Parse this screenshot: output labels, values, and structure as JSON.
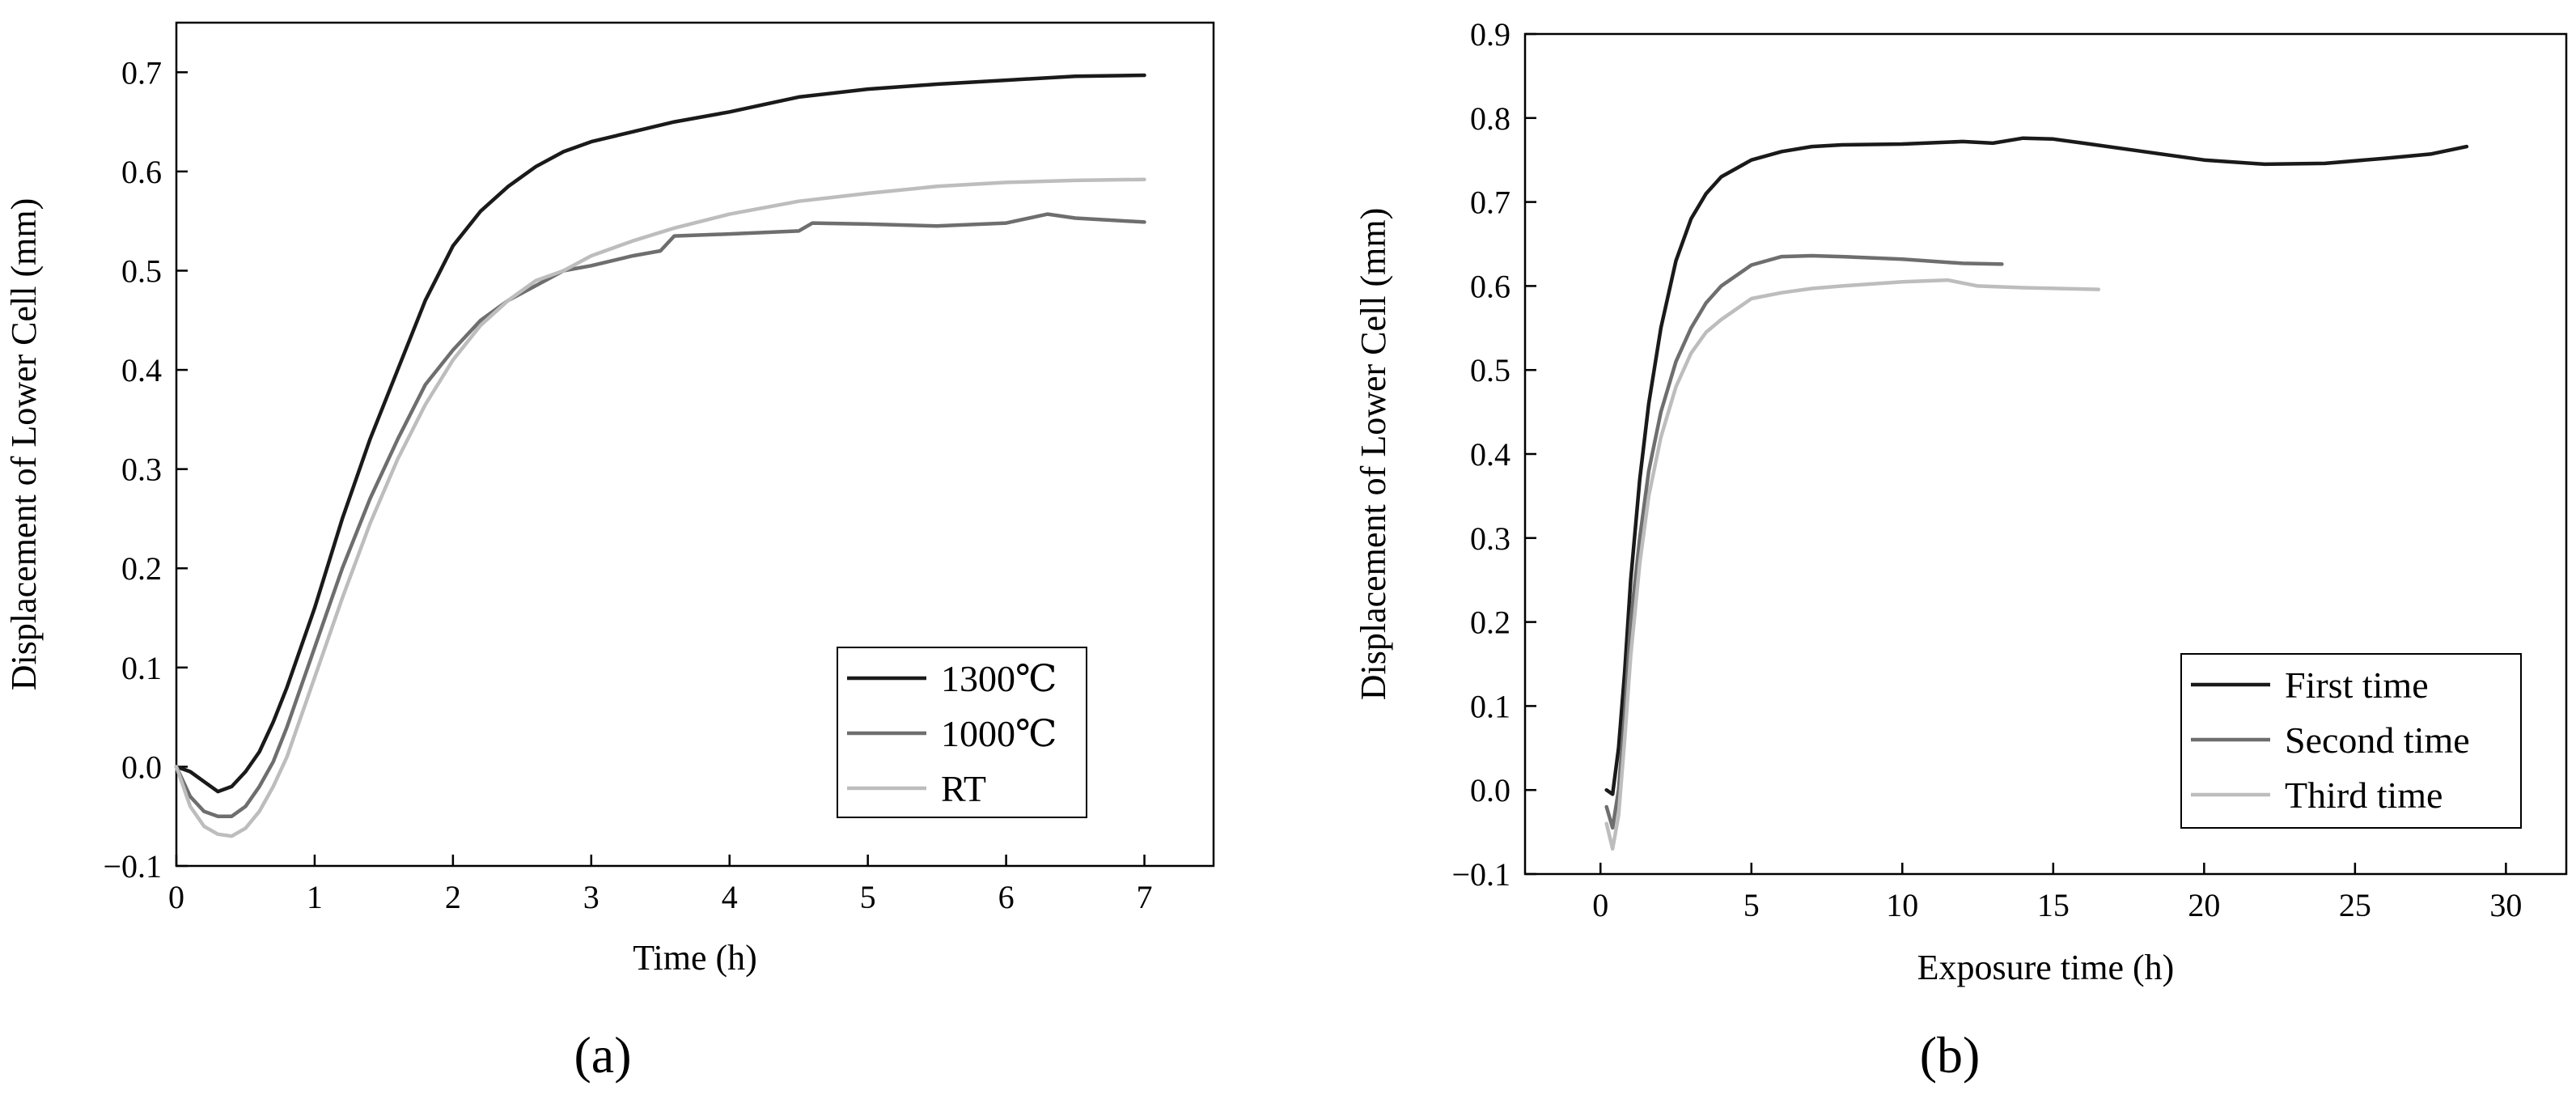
{
  "chart_data": [
    {
      "type": "line",
      "panel_label": "(a)",
      "xlabel": "Time (h)",
      "ylabel": "Displacement of Lower Cell (mm)",
      "xlim": [
        0,
        7.5
      ],
      "ylim": [
        -0.1,
        0.75
      ],
      "xticks": [
        0,
        1,
        2,
        3,
        4,
        5,
        6,
        7
      ],
      "xtick_labels": [
        "0",
        "1",
        "2",
        "3",
        "4",
        "5",
        "6",
        "7"
      ],
      "yticks": [
        -0.1,
        0.0,
        0.1,
        0.2,
        0.3,
        0.4,
        0.5,
        0.6,
        0.7
      ],
      "ytick_labels": [
        "−0.1",
        "0.0",
        "0.1",
        "0.2",
        "0.3",
        "0.4",
        "0.5",
        "0.6",
        "0.7"
      ],
      "legend_position": "bottom-right",
      "series": [
        {
          "name": "1300℃",
          "color": "#1a1a1a",
          "x": [
            0,
            0.1,
            0.2,
            0.3,
            0.4,
            0.5,
            0.6,
            0.7,
            0.8,
            0.9,
            1.0,
            1.2,
            1.4,
            1.6,
            1.8,
            2.0,
            2.2,
            2.4,
            2.6,
            2.8,
            3.0,
            3.3,
            3.6,
            4.0,
            4.5,
            5.0,
            5.5,
            6.0,
            6.5,
            7.0
          ],
          "y": [
            0.0,
            -0.005,
            -0.015,
            -0.025,
            -0.02,
            -0.005,
            0.015,
            0.045,
            0.08,
            0.12,
            0.16,
            0.25,
            0.33,
            0.4,
            0.47,
            0.525,
            0.56,
            0.585,
            0.605,
            0.62,
            0.63,
            0.64,
            0.65,
            0.66,
            0.675,
            0.683,
            0.688,
            0.692,
            0.696,
            0.697
          ]
        },
        {
          "name": "1000℃",
          "color": "#6e6e6e",
          "x": [
            0,
            0.1,
            0.2,
            0.3,
            0.4,
            0.5,
            0.6,
            0.7,
            0.8,
            0.9,
            1.0,
            1.2,
            1.4,
            1.6,
            1.8,
            2.0,
            2.2,
            2.4,
            2.6,
            2.8,
            3.0,
            3.3,
            3.5,
            3.6,
            4.0,
            4.5,
            4.6,
            5.0,
            5.5,
            6.0,
            6.3,
            6.5,
            7.0
          ],
          "y": [
            0.0,
            -0.03,
            -0.045,
            -0.05,
            -0.05,
            -0.04,
            -0.02,
            0.005,
            0.04,
            0.08,
            0.12,
            0.2,
            0.27,
            0.33,
            0.385,
            0.42,
            0.45,
            0.47,
            0.485,
            0.5,
            0.505,
            0.515,
            0.52,
            0.535,
            0.537,
            0.54,
            0.548,
            0.547,
            0.545,
            0.548,
            0.557,
            0.553,
            0.549
          ]
        },
        {
          "name": "RT",
          "color": "#bdbdbd",
          "x": [
            0,
            0.1,
            0.2,
            0.3,
            0.4,
            0.5,
            0.6,
            0.7,
            0.8,
            0.9,
            1.0,
            1.2,
            1.4,
            1.6,
            1.8,
            2.0,
            2.2,
            2.4,
            2.6,
            2.8,
            3.0,
            3.3,
            3.6,
            4.0,
            4.5,
            5.0,
            5.5,
            6.0,
            6.5,
            7.0
          ],
          "y": [
            0.0,
            -0.04,
            -0.06,
            -0.068,
            -0.07,
            -0.062,
            -0.045,
            -0.02,
            0.01,
            0.05,
            0.09,
            0.17,
            0.245,
            0.31,
            0.365,
            0.41,
            0.445,
            0.47,
            0.49,
            0.5,
            0.515,
            0.53,
            0.543,
            0.557,
            0.57,
            0.578,
            0.585,
            0.589,
            0.591,
            0.592
          ]
        }
      ]
    },
    {
      "type": "line",
      "panel_label": "(b)",
      "xlabel": "Exposure time (h)",
      "ylabel": "Displacement of Lower Cell (mm)",
      "xlim": [
        -2.5,
        32
      ],
      "ylim": [
        -0.1,
        0.9
      ],
      "xticks": [
        0,
        5,
        10,
        15,
        20,
        25,
        30
      ],
      "xtick_labels": [
        "0",
        "5",
        "10",
        "15",
        "20",
        "25",
        "30"
      ],
      "yticks": [
        -0.1,
        0.0,
        0.1,
        0.2,
        0.3,
        0.4,
        0.5,
        0.6,
        0.7,
        0.8,
        0.9
      ],
      "ytick_labels": [
        "−0.1",
        "0.0",
        "0.1",
        "0.2",
        "0.3",
        "0.4",
        "0.5",
        "0.6",
        "0.7",
        "0.8",
        "0.9"
      ],
      "legend_position": "bottom-right",
      "series": [
        {
          "name": "First time",
          "color": "#1a1a1a",
          "x": [
            0.2,
            0.4,
            0.6,
            0.8,
            1.0,
            1.3,
            1.6,
            2.0,
            2.5,
            3.0,
            3.5,
            4.0,
            5.0,
            6.0,
            7.0,
            8.0,
            10.0,
            12.0,
            13.0,
            14.0,
            15.0,
            16.0,
            18.0,
            20.0,
            22.0,
            24.0,
            26.0,
            27.5,
            28.7
          ],
          "y": [
            0.0,
            -0.005,
            0.05,
            0.14,
            0.25,
            0.37,
            0.46,
            0.55,
            0.63,
            0.68,
            0.71,
            0.73,
            0.75,
            0.76,
            0.766,
            0.768,
            0.769,
            0.772,
            0.77,
            0.776,
            0.775,
            0.77,
            0.76,
            0.75,
            0.745,
            0.746,
            0.752,
            0.757,
            0.766
          ]
        },
        {
          "name": "Second time",
          "color": "#6e6e6e",
          "x": [
            0.2,
            0.4,
            0.6,
            0.8,
            1.0,
            1.3,
            1.6,
            2.0,
            2.5,
            3.0,
            3.5,
            4.0,
            5.0,
            6.0,
            7.0,
            8.0,
            10.0,
            12.0,
            13.3
          ],
          "y": [
            -0.02,
            -0.045,
            0.0,
            0.09,
            0.2,
            0.3,
            0.38,
            0.45,
            0.51,
            0.55,
            0.58,
            0.6,
            0.625,
            0.635,
            0.636,
            0.635,
            0.632,
            0.627,
            0.626
          ]
        },
        {
          "name": "Third time",
          "color": "#bdbdbd",
          "x": [
            0.2,
            0.4,
            0.6,
            0.8,
            1.0,
            1.3,
            1.6,
            2.0,
            2.5,
            3.0,
            3.5,
            4.0,
            5.0,
            6.0,
            7.0,
            8.0,
            10.0,
            11.5,
            12.5,
            14.0,
            16.5
          ],
          "y": [
            -0.04,
            -0.07,
            -0.03,
            0.06,
            0.16,
            0.27,
            0.35,
            0.42,
            0.48,
            0.52,
            0.545,
            0.56,
            0.585,
            0.592,
            0.597,
            0.6,
            0.605,
            0.607,
            0.6,
            0.598,
            0.596
          ]
        }
      ]
    }
  ]
}
